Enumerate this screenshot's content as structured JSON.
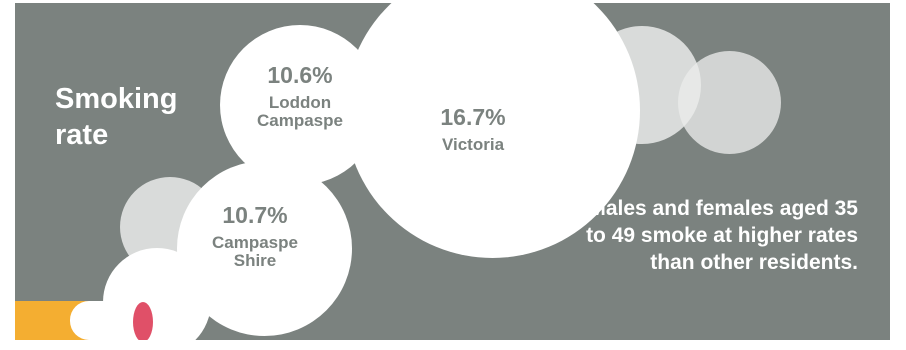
{
  "title": "Smoking\nrate",
  "stats": [
    {
      "value": "10.6%",
      "label": "Loddon\nCampaspe"
    },
    {
      "value": "16.7%",
      "label": "Victoria"
    },
    {
      "value": "10.7%",
      "label": "Campaspe\nShire"
    }
  ],
  "note": "Males and females aged 35 to 49 smoke at higher rates than other residents.",
  "colors": {
    "background": "#7b827f",
    "bubble": "#ffffff",
    "cigarette_filter": "#f4ae31",
    "cigarette_ember": "#e05068"
  }
}
